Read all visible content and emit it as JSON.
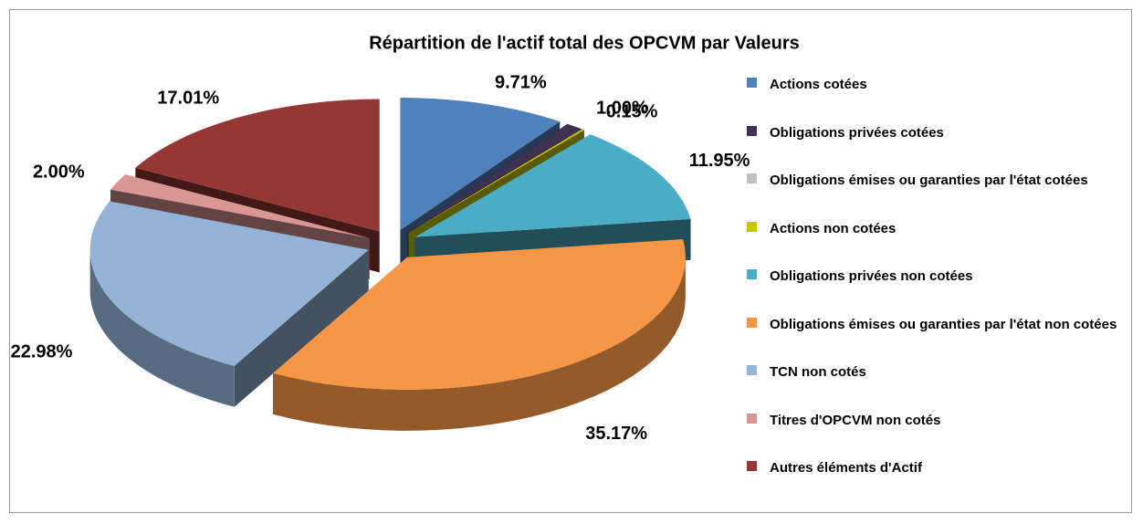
{
  "chart_data": {
    "type": "pie",
    "title": "Répartition de l'actif total des OPCVM par Valeurs",
    "categories": [
      "Actions cotées",
      "Obligations privées cotées",
      "Obligations émises ou garanties par l'état cotées",
      "Actions non cotées",
      "Obligations privées non cotées",
      "Obligations émises ou garanties par l'état non cotées",
      "TCN non cotés",
      "Titres d'OPCVM non cotés",
      "Autres éléments d'Actif"
    ],
    "values": [
      9.71,
      1.0,
      0,
      0.15,
      11.95,
      35.17,
      22.98,
      2.0,
      17.01
    ],
    "value_labels": [
      "9.71%",
      "1.00%",
      null,
      "0.15%",
      "11.95%",
      "35.17%",
      "22.98%",
      "2.00%",
      "17.01%"
    ],
    "colors": [
      "#4f81bd",
      "#403152",
      "#bfbfbf",
      "#c8c800",
      "#4bacc6",
      "#f79646",
      "#95b3d7",
      "#d99694",
      "#953735"
    ],
    "legend": "right"
  }
}
